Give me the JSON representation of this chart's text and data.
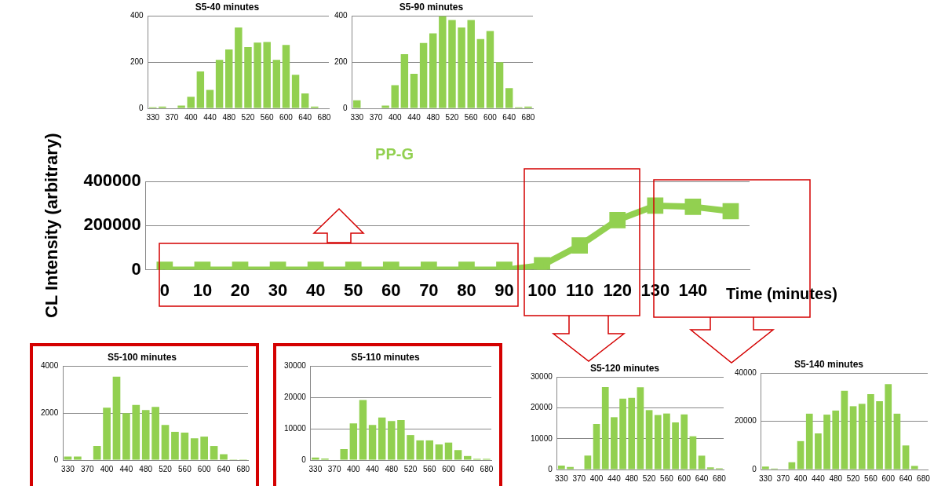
{
  "chart_data": [
    {
      "type": "bar",
      "title": "S5-40 minutes",
      "categories": [
        "330",
        null,
        "370",
        null,
        "400",
        null,
        "440",
        null,
        "480",
        null,
        "520",
        null,
        "560",
        null,
        "600",
        null,
        "640",
        null,
        "680"
      ],
      "series": [
        {
          "color": "#92d050",
          "values": [
            5,
            8,
            0,
            12,
            50,
            160,
            80,
            210,
            255,
            350,
            265,
            285,
            287,
            210,
            275,
            145,
            65,
            8,
            0
          ]
        }
      ],
      "ylim": [
        0,
        400
      ],
      "yticks": [
        0,
        200,
        400
      ],
      "grid": "y",
      "legend": false
    },
    {
      "type": "bar",
      "title": "S5-90 minutes",
      "categories": [
        "330",
        null,
        "370",
        null,
        "400",
        null,
        "440",
        null,
        "480",
        null,
        "520",
        null,
        "560",
        null,
        "600",
        null,
        "640",
        null,
        "680"
      ],
      "series": [
        {
          "color": "#92d050",
          "values": [
            35,
            0,
            0,
            12,
            100,
            235,
            150,
            283,
            325,
            400,
            383,
            350,
            383,
            300,
            335,
            200,
            88,
            5,
            8
          ]
        }
      ],
      "ylim": [
        0,
        400
      ],
      "yticks": [
        0,
        200,
        400
      ],
      "grid": "y",
      "legend": false
    },
    {
      "type": "line",
      "title": "PP-G",
      "xlabel": "Time (minutes)",
      "ylabel": "CL Intensity (arbitrary)",
      "categories": [
        "0",
        "10",
        "20",
        "30",
        "40",
        "50",
        "60",
        "70",
        "80",
        "90",
        "100",
        "110",
        "120",
        "130",
        "140",
        null
      ],
      "series": [
        {
          "color": "#92d050",
          "values": [
            0,
            0,
            0,
            0,
            0,
            0,
            0,
            0,
            0,
            0,
            20000,
            110000,
            225000,
            290000,
            285000,
            265000
          ]
        }
      ],
      "ylim": [
        0,
        400000
      ],
      "yticks": [
        0,
        200000,
        400000
      ],
      "grid": "y",
      "legend": false,
      "marker": "square",
      "line_style": "solid"
    },
    {
      "type": "bar",
      "title": "S5-100 minutes",
      "categories": [
        "330",
        null,
        "370",
        null,
        "400",
        null,
        "440",
        null,
        "480",
        null,
        "520",
        null,
        "560",
        null,
        "600",
        null,
        "640",
        null,
        "680"
      ],
      "series": [
        {
          "color": "#92d050",
          "values": [
            150,
            150,
            0,
            600,
            2230,
            3550,
            2000,
            2350,
            2130,
            2270,
            1500,
            1200,
            1170,
            930,
            1000,
            600,
            250,
            30,
            30
          ]
        }
      ],
      "ylim": [
        0,
        4000
      ],
      "yticks": [
        0,
        2000,
        4000
      ],
      "grid": "y",
      "legend": false
    },
    {
      "type": "bar",
      "title": "S5-110 minutes",
      "categories": [
        "330",
        null,
        "370",
        null,
        "400",
        null,
        "440",
        null,
        "480",
        null,
        "520",
        null,
        "560",
        null,
        "600",
        null,
        "640",
        null,
        "680"
      ],
      "series": [
        {
          "color": "#92d050",
          "values": [
            800,
            500,
            0,
            3500,
            11700,
            19200,
            11200,
            13600,
            12500,
            12800,
            8000,
            6300,
            6300,
            5000,
            5600,
            3200,
            1300,
            400,
            400
          ]
        }
      ],
      "ylim": [
        0,
        30000
      ],
      "yticks": [
        0,
        10000,
        20000,
        30000
      ],
      "grid": "y",
      "legend": false
    },
    {
      "type": "bar",
      "title": "S5-120 minutes",
      "categories": [
        "330",
        null,
        "370",
        null,
        "400",
        null,
        "440",
        null,
        "480",
        null,
        "520",
        null,
        "560",
        null,
        "600",
        null,
        "640",
        null,
        "680"
      ],
      "series": [
        {
          "color": "#92d050",
          "values": [
            1300,
            800,
            0,
            4500,
            14800,
            26800,
            17000,
            23000,
            23300,
            26700,
            19300,
            17700,
            18200,
            15300,
            17900,
            10800,
            4500,
            700,
            400
          ]
        }
      ],
      "ylim": [
        0,
        30000
      ],
      "yticks": [
        0,
        10000,
        20000,
        30000
      ],
      "grid": "y",
      "legend": false
    },
    {
      "type": "bar",
      "title": "S5-140 minutes",
      "categories": [
        "330",
        null,
        "370",
        null,
        "400",
        null,
        "440",
        null,
        "480",
        null,
        "520",
        null,
        "560",
        null,
        "600",
        null,
        "640",
        null,
        "680"
      ],
      "series": [
        {
          "color": "#92d050",
          "values": [
            1200,
            400,
            0,
            3000,
            11800,
            23200,
            15000,
            22800,
            24500,
            32700,
            26300,
            27300,
            31300,
            28400,
            35500,
            23200,
            10000,
            1500,
            0
          ]
        }
      ],
      "ylim": [
        0,
        40000
      ],
      "yticks": [
        0,
        20000,
        40000
      ],
      "grid": "y",
      "legend": false
    }
  ]
}
